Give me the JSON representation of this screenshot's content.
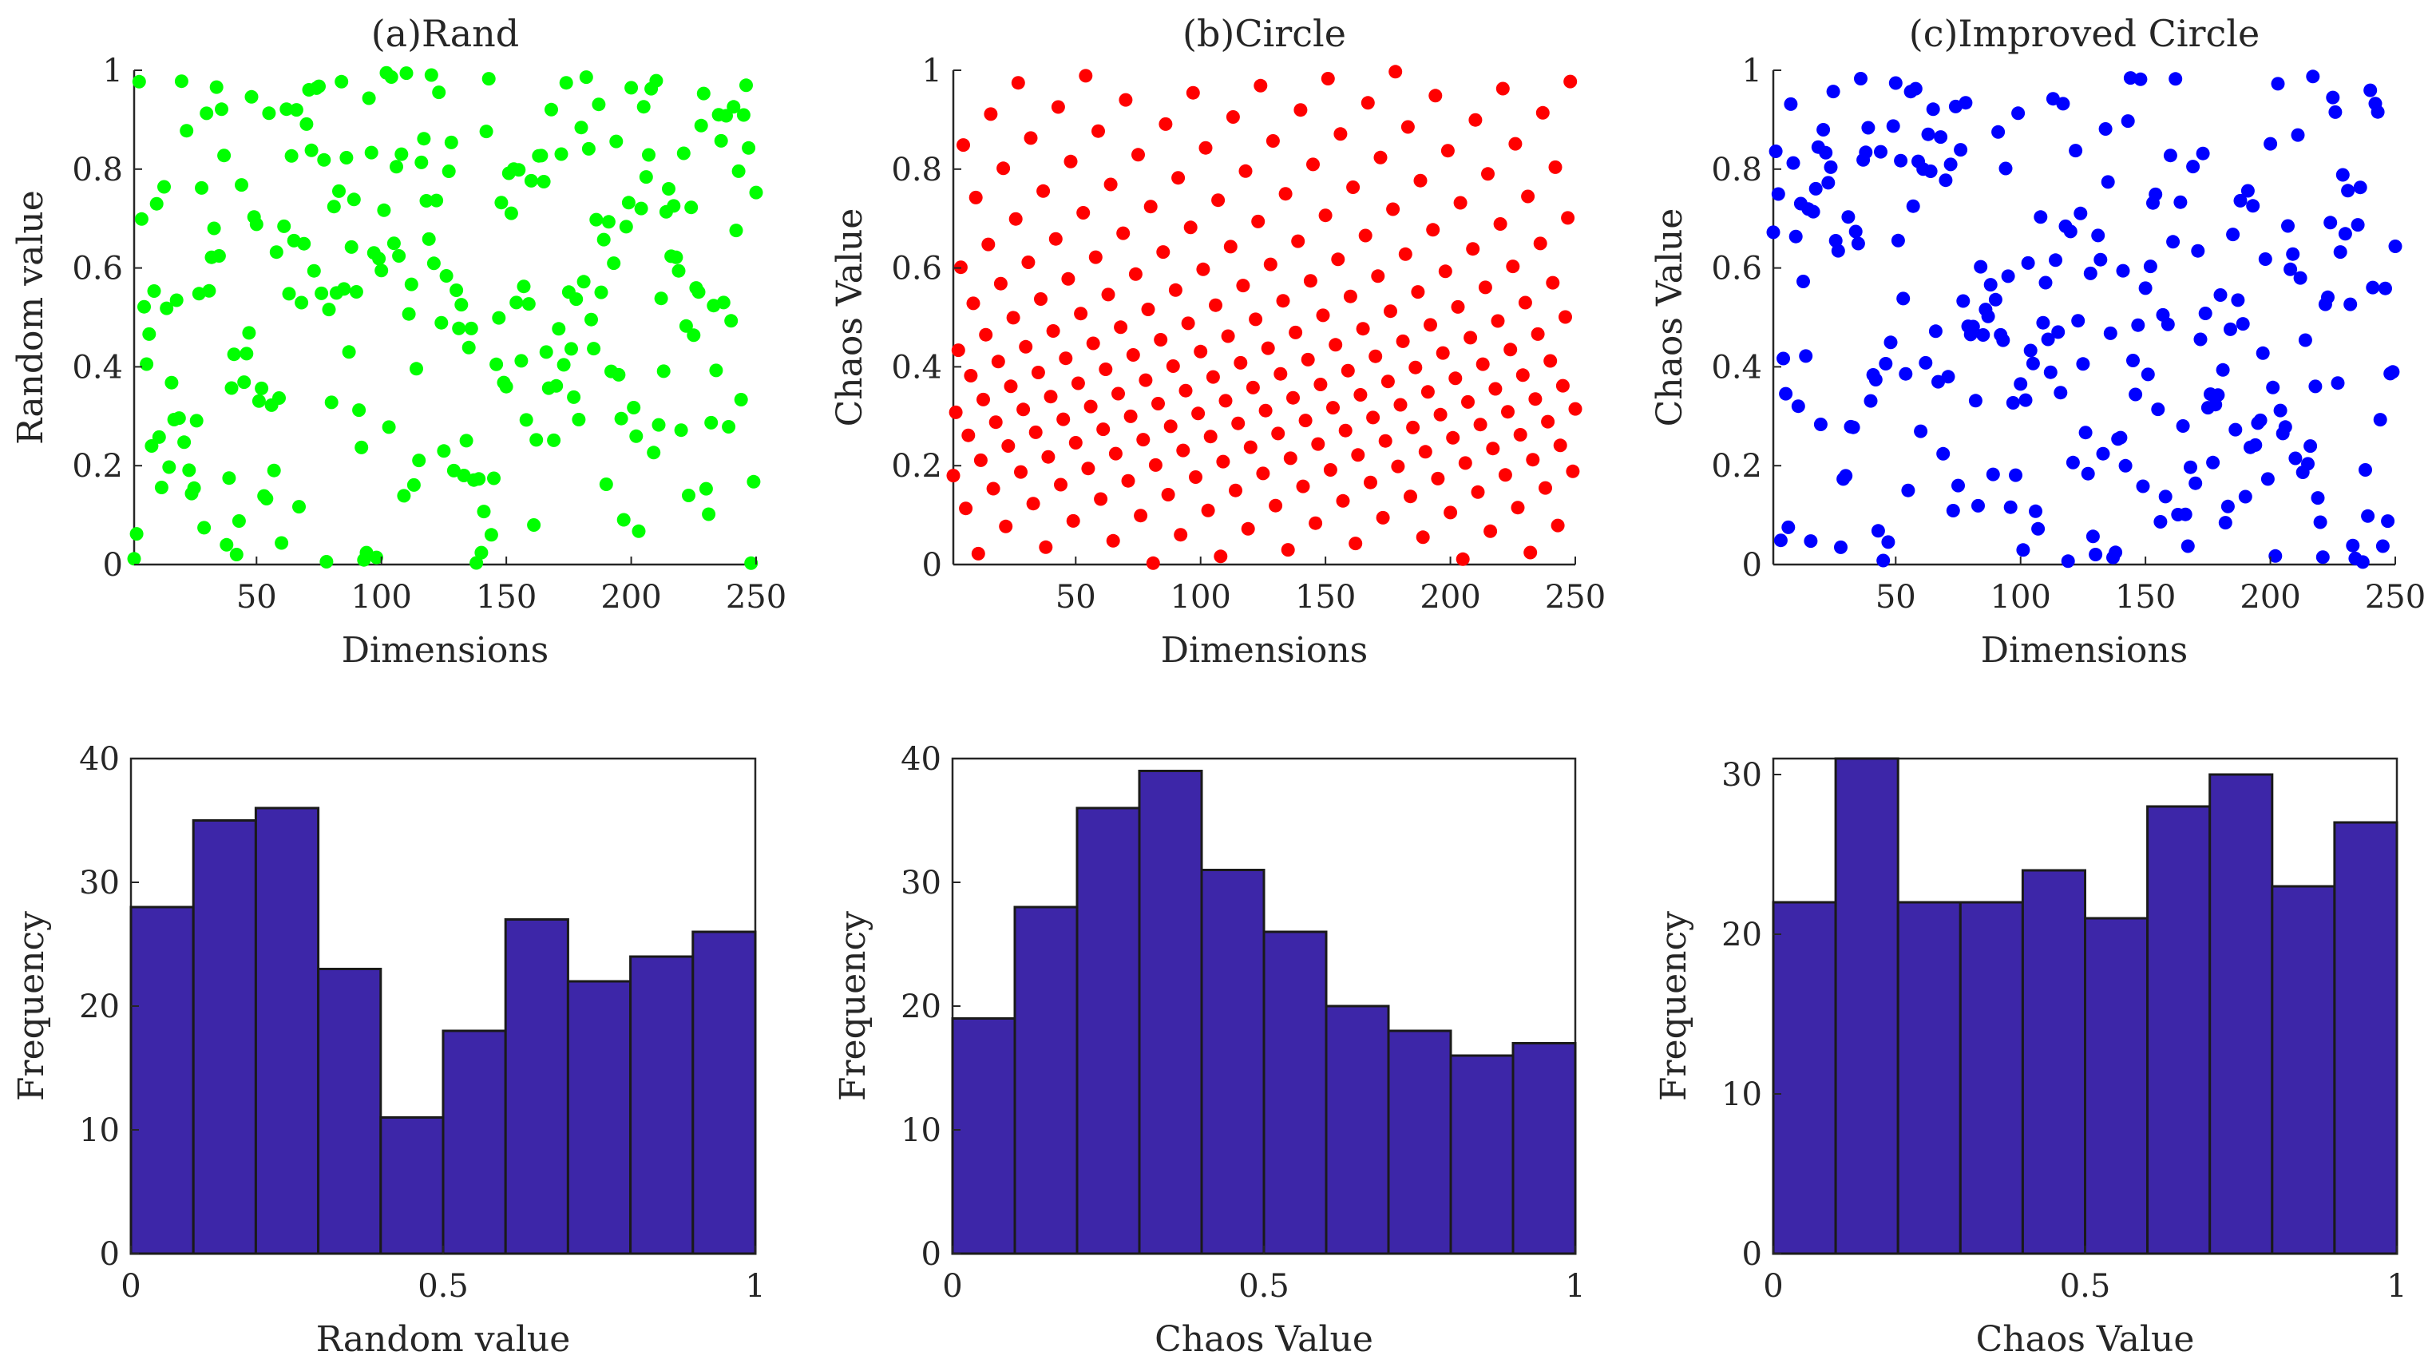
{
  "figure": {
    "description_panels": [
      "a",
      "b",
      "c"
    ]
  },
  "chart_data": [
    {
      "type": "scatter",
      "title": "(a)Rand",
      "xlabel": "Dimensions",
      "ylabel": "Random value",
      "xlim": [
        1,
        250
      ],
      "ylim": [
        0,
        1
      ],
      "xticks": [
        "50",
        "100",
        "150",
        "200",
        "250"
      ],
      "xtick_values": [
        50,
        100,
        150,
        200,
        250
      ],
      "yticks": [
        "0",
        "0.2",
        "0.4",
        "0.6",
        "0.8",
        "1"
      ],
      "ytick_values": [
        0,
        0.2,
        0.4,
        0.6,
        0.8,
        1
      ],
      "color": "#00ff00",
      "generator": "pseudo-random uniform [0,1]",
      "n_points": 250,
      "seed": 7
    },
    {
      "type": "scatter",
      "title": "(b)Circle",
      "xlabel": "Dimensions",
      "ylabel": "Chaos Value",
      "xlim": [
        1,
        250
      ],
      "ylim": [
        0,
        1
      ],
      "xticks": [
        "50",
        "100",
        "150",
        "200",
        "250"
      ],
      "xtick_values": [
        50,
        100,
        150,
        200,
        250
      ],
      "yticks": [
        "0",
        "0.2",
        "0.4",
        "0.6",
        "0.8",
        "1"
      ],
      "ytick_values": [
        0,
        0.2,
        0.4,
        0.6,
        0.8,
        1
      ],
      "color": "#ff0000",
      "generator": "circle map x(i+1) = mod(x(i) + 0.2 - (0.5/(2*pi))*sin(2*pi*x(i)), 1)",
      "n_points": 250,
      "x0": 0.18
    },
    {
      "type": "scatter",
      "title": "(c)Improved Circle",
      "xlabel": "Dimensions",
      "ylabel": "Chaos Value",
      "xlim": [
        1,
        250
      ],
      "ylim": [
        0,
        1
      ],
      "xticks": [
        "50",
        "100",
        "150",
        "200",
        "250"
      ],
      "xtick_values": [
        50,
        100,
        150,
        200,
        250
      ],
      "yticks": [
        "0",
        "0.2",
        "0.4",
        "0.6",
        "0.8",
        "1"
      ],
      "ytick_values": [
        0,
        0.2,
        0.4,
        0.6,
        0.8,
        1
      ],
      "color": "#0000ff",
      "generator": "improved circle map (approximately uniform)",
      "n_points": 250,
      "seed": 31
    },
    {
      "type": "bar",
      "subtype": "histogram",
      "xlabel": "Random value",
      "ylabel": "Frequency",
      "bin_edges": [
        0,
        0.1,
        0.2,
        0.3,
        0.4,
        0.5,
        0.6,
        0.7,
        0.8,
        0.9,
        1.0
      ],
      "values": [
        28,
        35,
        36,
        23,
        11,
        18,
        27,
        22,
        24,
        26
      ],
      "xlim": [
        0,
        1
      ],
      "ylim": [
        0,
        40
      ],
      "xticks": [
        "0",
        "0.5",
        "1"
      ],
      "xtick_values": [
        0,
        0.5,
        1
      ],
      "yticks": [
        "0",
        "10",
        "20",
        "30",
        "40"
      ],
      "ytick_values": [
        0,
        10,
        20,
        30,
        40
      ],
      "color": "#3d26a8"
    },
    {
      "type": "bar",
      "subtype": "histogram",
      "xlabel": "Chaos Value",
      "ylabel": "Frequency",
      "bin_edges": [
        0,
        0.1,
        0.2,
        0.3,
        0.4,
        0.5,
        0.6,
        0.7,
        0.8,
        0.9,
        1.0
      ],
      "values": [
        19,
        28,
        36,
        39,
        31,
        26,
        20,
        18,
        16,
        17
      ],
      "xlim": [
        0,
        1
      ],
      "ylim": [
        0,
        40
      ],
      "xticks": [
        "0",
        "0.5",
        "1"
      ],
      "xtick_values": [
        0,
        0.5,
        1
      ],
      "yticks": [
        "0",
        "10",
        "20",
        "30",
        "40"
      ],
      "ytick_values": [
        0,
        10,
        20,
        30,
        40
      ],
      "color": "#3d26a8"
    },
    {
      "type": "bar",
      "subtype": "histogram",
      "xlabel": "Chaos Value",
      "ylabel": "Frequency",
      "bin_edges": [
        0,
        0.1,
        0.2,
        0.3,
        0.4,
        0.5,
        0.6,
        0.7,
        0.8,
        0.9,
        1.0
      ],
      "values": [
        22,
        31,
        22,
        22,
        24,
        21,
        28,
        30,
        23,
        27
      ],
      "xlim": [
        0,
        1
      ],
      "ylim": [
        0,
        31
      ],
      "xticks": [
        "0",
        "0.5",
        "1"
      ],
      "xtick_values": [
        0,
        0.5,
        1
      ],
      "yticks": [
        "0",
        "10",
        "20",
        "30"
      ],
      "ytick_values": [
        0,
        10,
        20,
        30
      ],
      "color": "#3d26a8"
    }
  ]
}
